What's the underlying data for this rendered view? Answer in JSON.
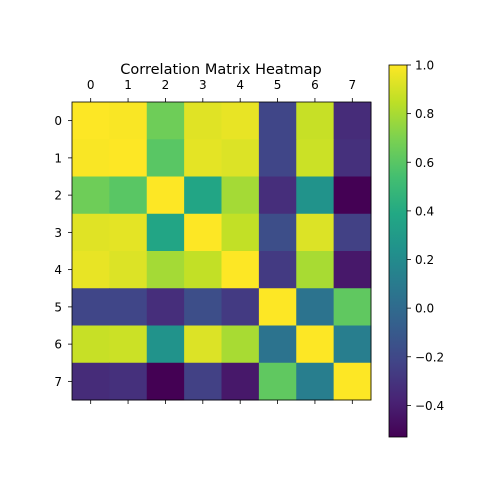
{
  "chart_data": {
    "type": "heatmap",
    "title": "Correlation Matrix Heatmap",
    "x_tick_labels": [
      "0",
      "1",
      "2",
      "3",
      "4",
      "5",
      "6",
      "7"
    ],
    "y_tick_labels": [
      "0",
      "1",
      "2",
      "3",
      "4",
      "5",
      "6",
      "7"
    ],
    "x_tick_position": "top",
    "colormap": "viridis",
    "values": [
      [
        1.0,
        0.99,
        0.66,
        0.93,
        0.95,
        -0.21,
        0.87,
        -0.34
      ],
      [
        0.99,
        1.0,
        0.6,
        0.94,
        0.92,
        -0.21,
        0.88,
        -0.32
      ],
      [
        0.66,
        0.6,
        1.0,
        0.37,
        0.79,
        -0.33,
        0.25,
        -0.53
      ],
      [
        0.93,
        0.94,
        0.37,
        1.0,
        0.86,
        -0.17,
        0.92,
        -0.24
      ],
      [
        0.95,
        0.92,
        0.79,
        0.86,
        1.0,
        -0.27,
        0.8,
        -0.43
      ],
      [
        -0.21,
        -0.21,
        -0.33,
        -0.17,
        -0.27,
        1.0,
        0.05,
        0.62
      ],
      [
        0.87,
        0.88,
        0.25,
        0.92,
        0.8,
        0.05,
        1.0,
        0.12
      ],
      [
        -0.34,
        -0.32,
        -0.53,
        -0.24,
        -0.43,
        0.62,
        0.12,
        1.0
      ]
    ],
    "colorbar": {
      "range": [
        -0.53,
        1.0
      ],
      "ticks": [
        -0.4,
        -0.2,
        0.0,
        0.2,
        0.4,
        0.6,
        0.8,
        1.0
      ],
      "tick_labels": [
        "−0.4",
        "−0.2",
        "0.0",
        "0.2",
        "0.4",
        "0.6",
        "0.8",
        "1.0"
      ]
    }
  }
}
